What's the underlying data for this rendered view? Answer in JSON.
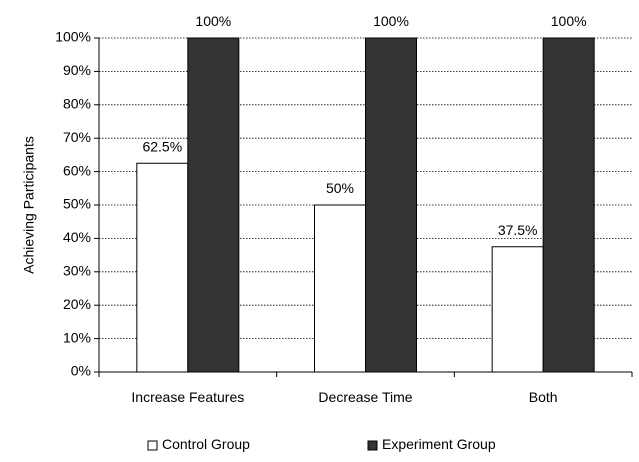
{
  "chart_data": {
    "type": "bar",
    "title": "",
    "xlabel": "",
    "ylabel": "Achieving Participants",
    "categories": [
      "Increase Features",
      "Decrease Time",
      "Both"
    ],
    "series": [
      {
        "name": "Control Group",
        "values": [
          62.5,
          50,
          37.5
        ],
        "labels": [
          "62.5%",
          "50%",
          "37.5%"
        ],
        "color": "#ffffff"
      },
      {
        "name": "Experiment Group",
        "values": [
          100,
          100,
          100
        ],
        "labels": [
          "100%",
          "100%",
          "100%"
        ],
        "color": "#333333"
      }
    ],
    "ylim": [
      0,
      100
    ],
    "yticks": [
      "0%",
      "10%",
      "20%",
      "30%",
      "40%",
      "50%",
      "60%",
      "70%",
      "80%",
      "90%",
      "100%"
    ],
    "grid": true,
    "legend_position": "bottom"
  }
}
